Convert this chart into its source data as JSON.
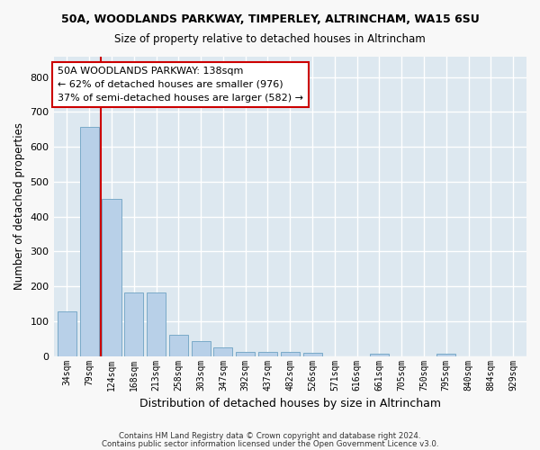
{
  "title": "50A, WOODLANDS PARKWAY, TIMPERLEY, ALTRINCHAM, WA15 6SU",
  "subtitle": "Size of property relative to detached houses in Altrincham",
  "xlabel": "Distribution of detached houses by size in Altrincham",
  "ylabel": "Number of detached properties",
  "bar_color": "#b8d0e8",
  "bar_edge_color": "#7aaac8",
  "categories": [
    "34sqm",
    "79sqm",
    "124sqm",
    "168sqm",
    "213sqm",
    "258sqm",
    "303sqm",
    "347sqm",
    "392sqm",
    "437sqm",
    "482sqm",
    "526sqm",
    "571sqm",
    "616sqm",
    "661sqm",
    "705sqm",
    "750sqm",
    "795sqm",
    "840sqm",
    "884sqm",
    "929sqm"
  ],
  "values": [
    128,
    657,
    452,
    183,
    183,
    60,
    42,
    25,
    12,
    13,
    11,
    9,
    0,
    0,
    7,
    0,
    0,
    8,
    0,
    0,
    0
  ],
  "ylim": [
    0,
    860
  ],
  "yticks": [
    0,
    100,
    200,
    300,
    400,
    500,
    600,
    700,
    800
  ],
  "vline_color": "#cc0000",
  "vline_x_index": 1.5,
  "annotation_text": "50A WOODLANDS PARKWAY: 138sqm\n← 62% of detached houses are smaller (976)\n37% of semi-detached houses are larger (582) →",
  "annotation_box_color": "#ffffff",
  "annotation_box_edge": "#cc0000",
  "footer1": "Contains HM Land Registry data © Crown copyright and database right 2024.",
  "footer2": "Contains public sector information licensed under the Open Government Licence v3.0.",
  "background_color": "#dde8f0",
  "fig_background": "#f8f8f8",
  "grid_color": "#ffffff",
  "figsize": [
    6.0,
    5.0
  ],
  "dpi": 100
}
